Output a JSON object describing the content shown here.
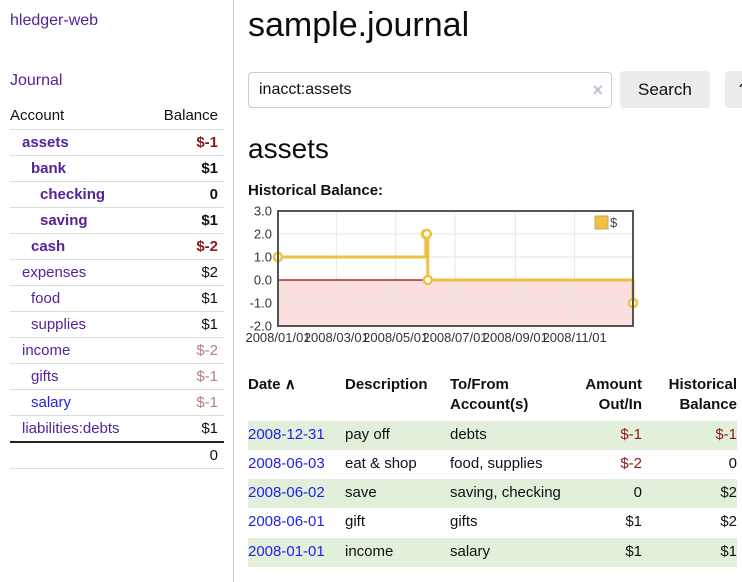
{
  "colors": {
    "link_purple": "#552299",
    "link_blue": "#2222e6",
    "negative_red": "#8b1a1a",
    "negative_muted": "#b97d7d",
    "row_stripe_green": "#e2efda",
    "chart_line_yellow": "#edc240",
    "chart_negative_fill": "#fbdfdf",
    "chart_zero_line": "#a00000",
    "chart_border": "#545454",
    "chart_grid": "#e6e6e6"
  },
  "sidebar": {
    "brand": "hledger-web",
    "nav": [
      {
        "label": "Journal"
      }
    ],
    "accounts": {
      "headers": {
        "account": "Account",
        "balance": "Balance"
      },
      "rows": [
        {
          "name": "assets",
          "balance": "$-1",
          "depth": 1,
          "in_account": true,
          "balance_style": "negative",
          "link_style": "visited"
        },
        {
          "name": "bank",
          "balance": "$1",
          "depth": 2,
          "in_account": true,
          "balance_style": "plain",
          "link_style": "visited"
        },
        {
          "name": "checking",
          "balance": "0",
          "depth": 3,
          "in_account": true,
          "balance_style": "plain",
          "link_style": "visited"
        },
        {
          "name": "saving",
          "balance": "$1",
          "depth": 3,
          "in_account": true,
          "balance_style": "plain",
          "link_style": "visited"
        },
        {
          "name": "cash",
          "balance": "$-2",
          "depth": 2,
          "in_account": true,
          "balance_style": "negative",
          "link_style": "visited"
        },
        {
          "name": "expenses",
          "balance": "$2",
          "depth": 1,
          "in_account": false,
          "balance_style": "plain",
          "link_style": "visited"
        },
        {
          "name": "food",
          "balance": "$1",
          "depth": 2,
          "in_account": false,
          "balance_style": "plain",
          "link_style": "visited"
        },
        {
          "name": "supplies",
          "balance": "$1",
          "depth": 2,
          "in_account": false,
          "balance_style": "plain",
          "link_style": "visited"
        },
        {
          "name": "income",
          "balance": "$-2",
          "depth": 1,
          "in_account": false,
          "balance_style": "negative-muted",
          "link_style": "visited"
        },
        {
          "name": "gifts",
          "balance": "$-1",
          "depth": 2,
          "in_account": false,
          "balance_style": "negative-muted",
          "link_style": "visited"
        },
        {
          "name": "salary",
          "balance": "$-1",
          "depth": 2,
          "in_account": false,
          "balance_style": "negative-muted",
          "link_style": "unvisited"
        },
        {
          "name": "liabilities:debts",
          "balance": "$1",
          "depth": 1,
          "in_account": false,
          "balance_style": "plain",
          "link_style": "visited"
        }
      ],
      "total": "0"
    }
  },
  "main": {
    "title": "sample.journal",
    "search": {
      "value": "inacct:assets",
      "clear_icon": "×",
      "search_button": "Search",
      "help_button": "?"
    },
    "account_heading": "assets",
    "chart_title": "Historical Balance:"
  },
  "chart_data": {
    "type": "line",
    "step": true,
    "title": "Historical Balance",
    "series": [
      {
        "name": "$",
        "color": "#edc240",
        "points": [
          [
            "2008-01-01",
            1
          ],
          [
            "2008-06-01",
            2
          ],
          [
            "2008-06-02",
            2
          ],
          [
            "2008-06-03",
            0
          ],
          [
            "2008-12-31",
            -1
          ]
        ]
      }
    ],
    "x_ticks": [
      "2008/01/01",
      "2008/03/01",
      "2008/05/01",
      "2008/07/01",
      "2008/09/01",
      "2008/11/01"
    ],
    "y_ticks": [
      3.0,
      2.0,
      1.0,
      0.0,
      -1.0,
      -2.0
    ],
    "xlim": [
      "2008-01-01",
      "2008-12-31"
    ],
    "ylim": [
      -2,
      3
    ],
    "grid": true,
    "legend": {
      "position": "top-right",
      "label": "$"
    },
    "negative_region": {
      "fill": "#fbdfdf",
      "zero_line_color": "#a00000"
    }
  },
  "register": {
    "headers": {
      "date": "Date",
      "sort_indicator": "∧",
      "description": "Description",
      "accounts": "To/From Account(s)",
      "amount": "Amount Out/In",
      "balance": "Historical Balance"
    },
    "rows": [
      {
        "date": "2008-12-31",
        "description": "pay off",
        "accounts": "debts",
        "amount": "$-1",
        "balance": "$-1",
        "amount_negative": true,
        "balance_negative": true,
        "striped": true
      },
      {
        "date": "2008-06-03",
        "description": "eat & shop",
        "accounts": "food, supplies",
        "amount": "$-2",
        "balance": "0",
        "amount_negative": true,
        "balance_negative": false,
        "striped": false
      },
      {
        "date": "2008-06-02",
        "description": "save",
        "accounts": "saving, checking",
        "amount": "0",
        "balance": "$2",
        "amount_negative": false,
        "balance_negative": false,
        "striped": true
      },
      {
        "date": "2008-06-01",
        "description": "gift",
        "accounts": "gifts",
        "amount": "$1",
        "balance": "$2",
        "amount_negative": false,
        "balance_negative": false,
        "striped": false
      },
      {
        "date": "2008-01-01",
        "description": "income",
        "accounts": "salary",
        "amount": "$1",
        "balance": "$1",
        "amount_negative": false,
        "balance_negative": false,
        "striped": true
      }
    ]
  }
}
